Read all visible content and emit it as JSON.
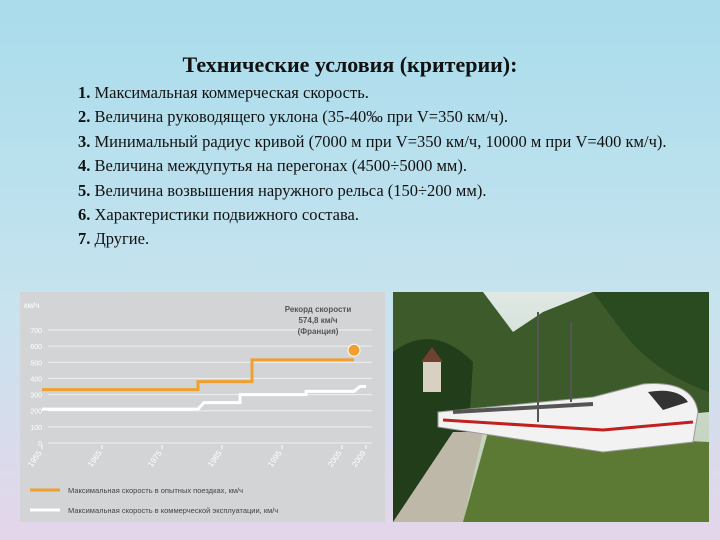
{
  "title": "Технические условия (критерии):",
  "items": [
    {
      "num": "1.",
      "text": "Максимальная коммерческая скорость."
    },
    {
      "num": "2.",
      "text": "Величина руководящего уклона (35-40‰ при V=350 км/ч)."
    },
    {
      "num": "3.",
      "text": "Минимальный радиус кривой (7000 м при V=350 км/ч, 10000 м при V=400 км/ч)."
    },
    {
      "num": "4.",
      "text": "Величина междупутья на перегонах (4500÷5000 мм)."
    },
    {
      "num": "5.",
      "text": "Величина возвышения наружного рельса (150÷200 мм)."
    },
    {
      "num": "6.",
      "text": "Характеристики подвижного состава."
    },
    {
      "num": "7.",
      "text": "Другие."
    }
  ],
  "figure": {
    "type": "line",
    "y_label": "км/ч",
    "annotation": [
      "Рекорд скорости",
      "574,8 км/ч",
      "(Франция)"
    ],
    "xlim": [
      1954,
      2010
    ],
    "xticks": [
      1955,
      1965,
      1975,
      1985,
      1995,
      2005,
      2009
    ],
    "ylim": [
      0,
      700
    ],
    "yticks": [
      0,
      100,
      200,
      300,
      400,
      500,
      600,
      700
    ],
    "series": [
      {
        "name": "Максимальная скорость в опытных поездках, км/ч",
        "color": "#f0a030",
        "x": [
          1955,
          1981,
          1981,
          1990,
          1990,
          2007
        ],
        "values": [
          331,
          331,
          380,
          380,
          515,
          515
        ]
      },
      {
        "name": "Максимальная скорость в коммерческой эксплуатации, км/ч",
        "color": "#ffffff",
        "x": [
          1955,
          1981,
          1982,
          1988,
          1988,
          1999,
          1999,
          2007,
          2008,
          2009
        ],
        "values": [
          210,
          210,
          250,
          250,
          300,
          300,
          320,
          320,
          350,
          350
        ]
      }
    ],
    "record": {
      "x": 2007,
      "value": 574.8,
      "color": "#f0a030"
    }
  }
}
